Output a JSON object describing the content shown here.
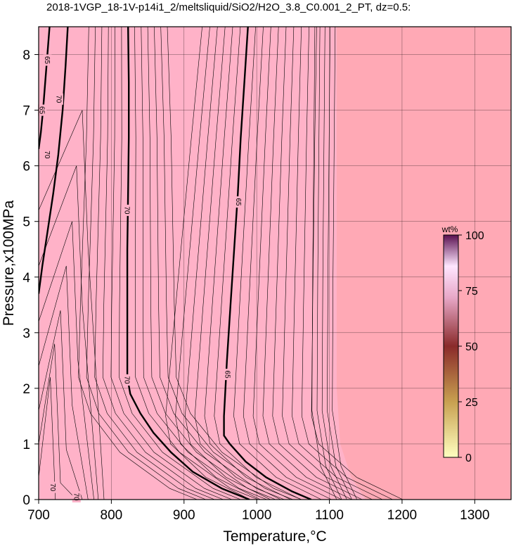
{
  "chart_data": {
    "type": "contour",
    "title": "2018-1VGP_18-1V-p14i1_2/meltsliquid/SiO2/H2O_3.8_C0.001_2_PT, dz=0.5:",
    "xlabel": "Temperature,°C",
    "ylabel": "Pressure,x100MPa",
    "xlim": [
      700,
      1350
    ],
    "ylim": [
      0,
      8.5
    ],
    "xticks": [
      700,
      800,
      900,
      1000,
      1100,
      1200,
      1300
    ],
    "yticks": [
      0,
      1,
      2,
      3,
      4,
      5,
      6,
      7,
      8
    ],
    "grid": true,
    "colorbar": {
      "unit": "wt%",
      "ticks": [
        0,
        25,
        50,
        75,
        100
      ],
      "range": [
        0,
        100
      ],
      "colors": [
        "#ffffc0",
        "#c8a050",
        "#8a2a2a",
        "#e8a8c8",
        "#ffe6ff",
        "#5a1050"
      ]
    },
    "colors": {
      "liquid_field": "#ffb2c8",
      "solid_field": "#ffa9b5",
      "contour": "#000000"
    },
    "major_contours": [
      {
        "label": "70",
        "points": [
          [
            823,
            8.5
          ],
          [
            824,
            7.5
          ],
          [
            824,
            6.5
          ],
          [
            823,
            5.5
          ],
          [
            822,
            4.5
          ],
          [
            822,
            3.5
          ],
          [
            822,
            2.2
          ],
          [
            826,
            1.9
          ],
          [
            840,
            1.55
          ],
          [
            858,
            1.2
          ],
          [
            882,
            0.85
          ],
          [
            912,
            0.5
          ],
          [
            952,
            0.2
          ],
          [
            990,
            0
          ]
        ]
      },
      {
        "label": "65",
        "points": [
          [
            988,
            8.5
          ],
          [
            983,
            7.5
          ],
          [
            978,
            6.5
          ],
          [
            974,
            5.5
          ],
          [
            969,
            4.5
          ],
          [
            964,
            3.5
          ],
          [
            959,
            2.5
          ],
          [
            955,
            1.5
          ],
          [
            955,
            1.15
          ],
          [
            963,
            1.0
          ],
          [
            985,
            0.68
          ],
          [
            1013,
            0.4
          ],
          [
            1048,
            0.15
          ],
          [
            1075,
            0
          ]
        ]
      },
      {
        "label": "70",
        "points": [
          [
            740,
            8.5
          ],
          [
            737,
            7.8
          ],
          [
            733,
            7.0
          ],
          [
            727,
            6.2
          ],
          [
            720,
            5.5
          ],
          [
            712,
            4.8
          ],
          [
            705,
            4.2
          ],
          [
            700,
            3.7
          ]
        ]
      },
      {
        "label": "65",
        "points": [
          [
            715,
            8.5
          ],
          [
            712,
            8.0
          ],
          [
            709,
            7.5
          ],
          [
            706,
            7.0
          ],
          [
            703,
            6.6
          ],
          [
            700,
            6.3
          ]
        ]
      }
    ],
    "contour_labels": [
      {
        "text": "70",
        "x": 822,
        "y": 5.2
      },
      {
        "text": "70",
        "x": 822,
        "y": 2.15
      },
      {
        "text": "65",
        "x": 975,
        "y": 5.35
      },
      {
        "text": "65",
        "x": 960,
        "y": 2.25
      },
      {
        "text": "65",
        "x": 712,
        "y": 7.9
      },
      {
        "text": "70",
        "x": 728,
        "y": 7.2
      },
      {
        "text": "65",
        "x": 705,
        "y": 7.0
      },
      {
        "text": "70",
        "x": 712,
        "y": 6.2
      },
      {
        "text": "70",
        "x": 720,
        "y": 0.22
      },
      {
        "text": "70",
        "x": 752,
        "y": 0.05
      }
    ]
  }
}
